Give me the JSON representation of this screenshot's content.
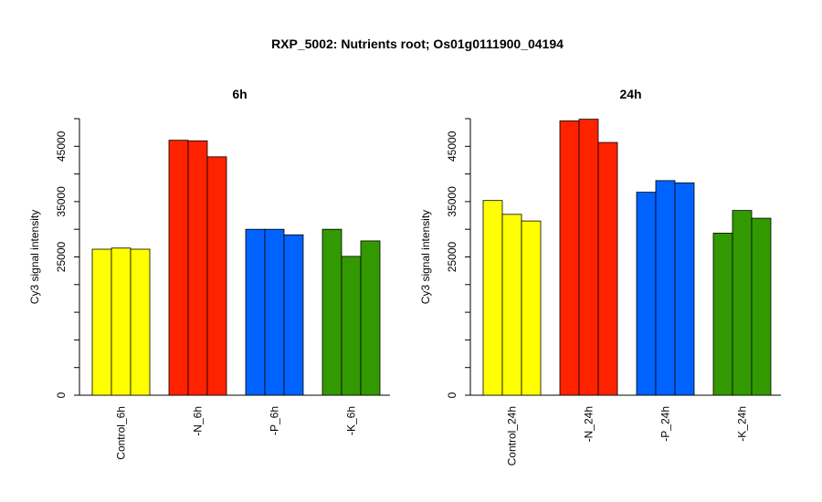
{
  "figure_title": "RXP_5002: Nutrients root; Os01g0111900_04194",
  "chart_data": [
    {
      "type": "bar",
      "title": "6h",
      "xlabel": "",
      "ylabel": "Cy3 signal intensity",
      "ylim": [
        0,
        50000
      ],
      "yticks": [
        0,
        25000,
        35000,
        45000
      ],
      "categories": [
        "Control_6h",
        "-N_6h",
        "-P_6h",
        "-K_6h"
      ],
      "colors": [
        "#ffff00",
        "#ff2200",
        "#0062ff",
        "#339900"
      ],
      "replicates": [
        [
          26400,
          26600,
          26400
        ],
        [
          46100,
          46000,
          43100
        ],
        [
          30000,
          30000,
          29000
        ],
        [
          30000,
          25100,
          27900
        ]
      ]
    },
    {
      "type": "bar",
      "title": "24h",
      "xlabel": "",
      "ylabel": "Cy3 signal intensity",
      "ylim": [
        0,
        50000
      ],
      "yticks": [
        0,
        25000,
        35000,
        45000
      ],
      "categories": [
        "Control_24h",
        "-N_24h",
        "-P_24h",
        "-K_24h"
      ],
      "colors": [
        "#ffff00",
        "#ff2200",
        "#0062ff",
        "#339900"
      ],
      "replicates": [
        [
          35200,
          32700,
          31500
        ],
        [
          49600,
          49900,
          45700
        ],
        [
          36700,
          38800,
          38400
        ],
        [
          29300,
          33400,
          32000
        ]
      ]
    }
  ]
}
